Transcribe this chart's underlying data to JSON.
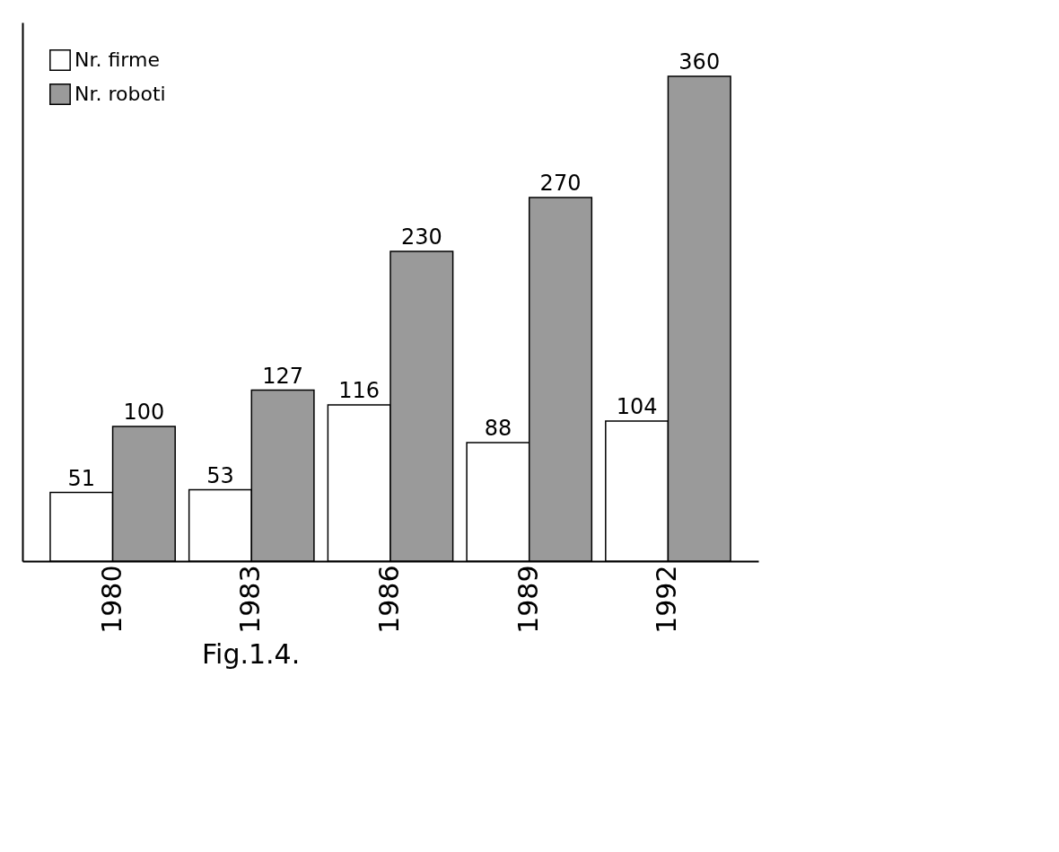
{
  "chart_data": {
    "type": "bar",
    "categories": [
      "1980",
      "1983",
      "1986",
      "1989",
      "1992"
    ],
    "series": [
      {
        "name": "Nr. firme",
        "color": "#ffffff",
        "values": [
          51,
          53,
          116,
          88,
          104
        ]
      },
      {
        "name": "Nr. roboti",
        "color": "#9a9a9a",
        "values": [
          100,
          127,
          230,
          270,
          360
        ]
      }
    ],
    "ylim": [
      0,
      400
    ],
    "data_labels": true,
    "legend": "top left",
    "tick_labels": "x",
    "grid": false,
    "annotations": [
      "Fig.1.4."
    ]
  }
}
